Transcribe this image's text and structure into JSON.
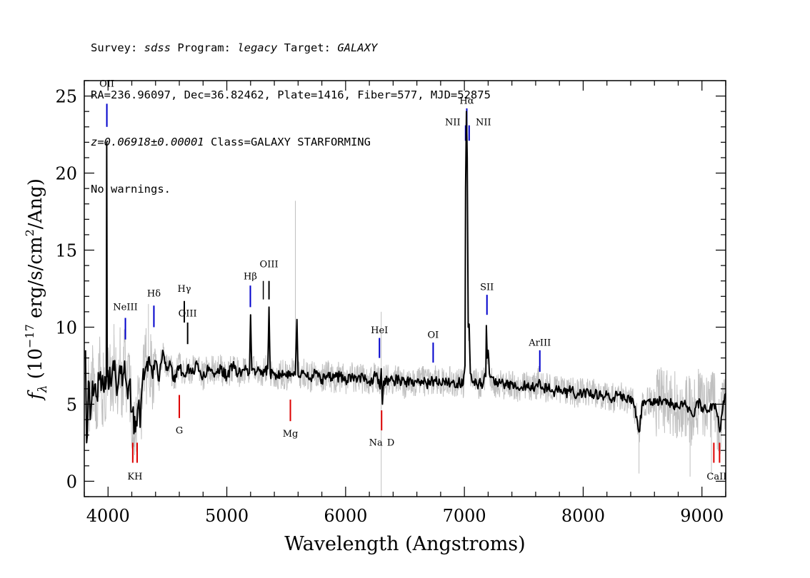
{
  "header": {
    "line1": {
      "survey_label": "Survey: ",
      "survey": "sdss",
      "program_label": " Program: ",
      "program": "legacy",
      "target_label": " Target: ",
      "target": "GALAXY"
    },
    "line2": "RA=236.96097, Dec=36.82462, Plate=1416, Fiber=577, MJD=52875",
    "line3": {
      "redshift": "z=0.06918±0.00001",
      "class": " Class=GALAXY STARFORMING"
    },
    "line4": "No warnings."
  },
  "chart_data": {
    "type": "line",
    "title": "",
    "xlabel": "Wavelength (Angstroms)",
    "ylabel": "f_λ (10^-17 erg/s/cm^2/Ang)",
    "xlim": [
      3800,
      9200
    ],
    "ylim": [
      -1,
      26
    ],
    "xticks": [
      4000,
      5000,
      6000,
      7000,
      8000,
      9000
    ],
    "yticks": [
      0,
      5,
      10,
      15,
      20,
      25
    ],
    "grid": false,
    "legend": "none",
    "colors": {
      "spectrum": "#000000",
      "raw": "#c0c0c0",
      "emission": "#0000cc",
      "absorption": "#dd0000"
    },
    "series": [
      {
        "role": "smoothed spectrum (black)",
        "points": [
          [
            3810,
            8.5
          ],
          [
            3820,
            2.5
          ],
          [
            3835,
            6.5
          ],
          [
            3850,
            4.0
          ],
          [
            3870,
            6.5
          ],
          [
            3900,
            5.5
          ],
          [
            3930,
            6.8
          ],
          [
            3960,
            6.0
          ],
          [
            3985,
            6.5
          ],
          [
            3989,
            22.0
          ],
          [
            3993,
            6.8
          ],
          [
            4020,
            6.5
          ],
          [
            4050,
            7.2
          ],
          [
            4080,
            6.0
          ],
          [
            4100,
            7.5
          ],
          [
            4120,
            6.2
          ],
          [
            4140,
            7.8
          ],
          [
            4160,
            6.0
          ],
          [
            4180,
            6.5
          ],
          [
            4200,
            4.5
          ],
          [
            4230,
            3.2
          ],
          [
            4255,
            5.0
          ],
          [
            4270,
            3.5
          ],
          [
            4290,
            6.5
          ],
          [
            4310,
            7.0
          ],
          [
            4340,
            8.0
          ],
          [
            4370,
            7.0
          ],
          [
            4400,
            7.8
          ],
          [
            4430,
            6.5
          ],
          [
            4460,
            8.5
          ],
          [
            4490,
            7.2
          ],
          [
            4520,
            7.8
          ],
          [
            4550,
            6.5
          ],
          [
            4600,
            7.5
          ],
          [
            4640,
            6.8
          ],
          [
            4670,
            7.5
          ],
          [
            4700,
            7.0
          ],
          [
            4750,
            7.6
          ],
          [
            4800,
            6.8
          ],
          [
            4850,
            7.4
          ],
          [
            4900,
            7.0
          ],
          [
            4950,
            7.3
          ],
          [
            5000,
            6.8
          ],
          [
            5050,
            7.5
          ],
          [
            5100,
            7.0
          ],
          [
            5150,
            7.2
          ],
          [
            5190,
            7.0
          ],
          [
            5200,
            10.8
          ],
          [
            5210,
            7.2
          ],
          [
            5250,
            7.1
          ],
          [
            5300,
            7.0
          ],
          [
            5345,
            7.3
          ],
          [
            5355,
            11.3
          ],
          [
            5365,
            7.0
          ],
          [
            5400,
            6.9
          ],
          [
            5450,
            7.0
          ],
          [
            5500,
            6.8
          ],
          [
            5550,
            7.0
          ],
          [
            5577,
            6.9
          ],
          [
            5590,
            10.5
          ],
          [
            5600,
            6.9
          ],
          [
            5650,
            7.0
          ],
          [
            5700,
            6.7
          ],
          [
            5750,
            7.0
          ],
          [
            5800,
            6.6
          ],
          [
            5850,
            6.9
          ],
          [
            5900,
            6.7
          ],
          [
            5950,
            6.8
          ],
          [
            6000,
            6.6
          ],
          [
            6050,
            6.8
          ],
          [
            6100,
            6.6
          ],
          [
            6150,
            6.7
          ],
          [
            6200,
            6.5
          ],
          [
            6250,
            6.8
          ],
          [
            6280,
            6.6
          ],
          [
            6290,
            6.0
          ],
          [
            6300,
            7.3
          ],
          [
            6310,
            5.0
          ],
          [
            6320,
            6.5
          ],
          [
            6350,
            6.6
          ],
          [
            6400,
            6.5
          ],
          [
            6450,
            6.6
          ],
          [
            6500,
            6.3
          ],
          [
            6550,
            6.6
          ],
          [
            6600,
            6.4
          ],
          [
            6650,
            6.5
          ],
          [
            6700,
            6.3
          ],
          [
            6750,
            6.6
          ],
          [
            6800,
            6.3
          ],
          [
            6850,
            6.5
          ],
          [
            6900,
            6.4
          ],
          [
            6950,
            6.4
          ],
          [
            6990,
            6.3
          ],
          [
            7005,
            7.5
          ],
          [
            7010,
            19.0
          ],
          [
            7017,
            24.0
          ],
          [
            7024,
            21.0
          ],
          [
            7032,
            10.0
          ],
          [
            7040,
            10.2
          ],
          [
            7050,
            7.0
          ],
          [
            7080,
            6.5
          ],
          [
            7120,
            6.3
          ],
          [
            7160,
            6.4
          ],
          [
            7180,
            6.8
          ],
          [
            7185,
            10.1
          ],
          [
            7192,
            8.0
          ],
          [
            7200,
            8.5
          ],
          [
            7210,
            7.0
          ],
          [
            7250,
            6.4
          ],
          [
            7300,
            6.4
          ],
          [
            7350,
            6.2
          ],
          [
            7400,
            6.3
          ],
          [
            7450,
            6.1
          ],
          [
            7500,
            6.2
          ],
          [
            7550,
            6.0
          ],
          [
            7600,
            6.2
          ],
          [
            7630,
            6.6
          ],
          [
            7650,
            6.0
          ],
          [
            7700,
            6.1
          ],
          [
            7750,
            5.8
          ],
          [
            7800,
            6.0
          ],
          [
            7850,
            5.7
          ],
          [
            7900,
            5.9
          ],
          [
            7950,
            5.6
          ],
          [
            8000,
            5.8
          ],
          [
            8050,
            5.6
          ],
          [
            8100,
            5.7
          ],
          [
            8150,
            5.5
          ],
          [
            8200,
            5.6
          ],
          [
            8250,
            5.4
          ],
          [
            8300,
            5.6
          ],
          [
            8350,
            5.3
          ],
          [
            8400,
            5.5
          ],
          [
            8450,
            4.2
          ],
          [
            8470,
            3.2
          ],
          [
            8500,
            5.2
          ],
          [
            8550,
            5.3
          ],
          [
            8600,
            5.0
          ],
          [
            8650,
            5.3
          ],
          [
            8700,
            5.0
          ],
          [
            8750,
            5.1
          ],
          [
            8800,
            4.8
          ],
          [
            8850,
            5.0
          ],
          [
            8900,
            4.6
          ],
          [
            8930,
            4.2
          ],
          [
            8960,
            5.2
          ],
          [
            9000,
            4.8
          ],
          [
            9050,
            4.6
          ],
          [
            9100,
            5.0
          ],
          [
            9130,
            4.2
          ],
          [
            9150,
            3.2
          ],
          [
            9180,
            5.2
          ],
          [
            9200,
            5.7
          ]
        ]
      }
    ],
    "annotations": [
      {
        "label": "OII",
        "x": 3990,
        "kind": "emission"
      },
      {
        "label": "NeIII",
        "x": 4146,
        "kind": "emission"
      },
      {
        "label": "Hδ",
        "x": 4386,
        "kind": "emission"
      },
      {
        "label": "Hγ",
        "x": 4642,
        "kind": "emission"
      },
      {
        "label": "OIII",
        "x": 4670,
        "kind": "emission"
      },
      {
        "label": "Hβ",
        "x": 5198,
        "kind": "emission"
      },
      {
        "label": "OIII",
        "x": 5355,
        "kind": "emission"
      },
      {
        "label": "HeI",
        "x": 6285,
        "kind": "emission"
      },
      {
        "label": "OI",
        "x": 6737,
        "kind": "emission"
      },
      {
        "label": "NII",
        "x": 7010,
        "kind": "emission"
      },
      {
        "label": "Hα",
        "x": 7020,
        "kind": "emission"
      },
      {
        "label": "NII",
        "x": 7040,
        "kind": "emission"
      },
      {
        "label": "SII",
        "x": 7190,
        "kind": "emission"
      },
      {
        "label": "ArIII",
        "x": 7635,
        "kind": "emission"
      },
      {
        "label": "K",
        "x": 4208,
        "kind": "absorption"
      },
      {
        "label": "H",
        "x": 4245,
        "kind": "absorption"
      },
      {
        "label": "G",
        "x": 4600,
        "kind": "absorption"
      },
      {
        "label": "Mg",
        "x": 5535,
        "kind": "absorption"
      },
      {
        "label": "Na",
        "x": 6303,
        "kind": "absorption"
      },
      {
        "label": "D",
        "x": 6380,
        "kind": "absorption"
      },
      {
        "label": "CaII",
        "x": 9100,
        "kind": "absorption"
      }
    ]
  }
}
